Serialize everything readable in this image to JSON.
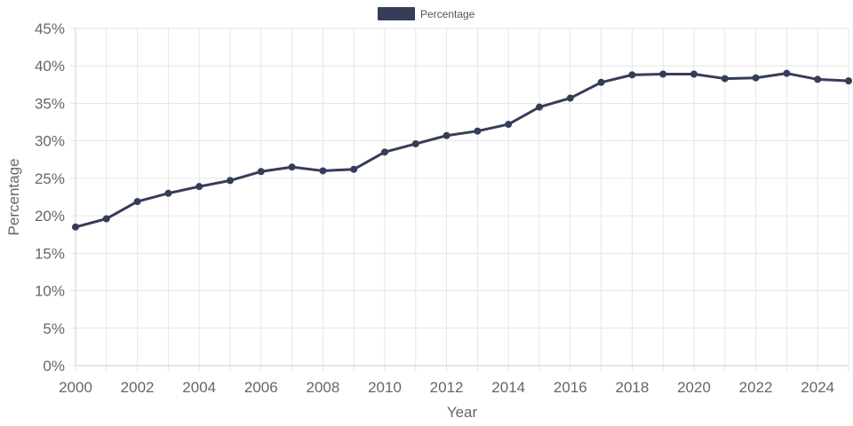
{
  "chart_data": {
    "type": "line",
    "xlabel": "Year",
    "ylabel": "Percentage",
    "xlim": [
      2000,
      2025
    ],
    "ylim": [
      0,
      45
    ],
    "x_ticks": [
      "2000",
      "2002",
      "2004",
      "2006",
      "2008",
      "2010",
      "2012",
      "2014",
      "2016",
      "2018",
      "2020",
      "2022",
      "2024"
    ],
    "y_ticks": [
      "0%",
      "5%",
      "10%",
      "15%",
      "20%",
      "25%",
      "30%",
      "35%",
      "40%",
      "45%"
    ],
    "grid": true,
    "legend_position": "top-center",
    "series": [
      {
        "name": "Percentage",
        "color": "#363d58",
        "x": [
          2000,
          2001,
          2002,
          2003,
          2004,
          2005,
          2006,
          2007,
          2008,
          2009,
          2010,
          2011,
          2012,
          2013,
          2014,
          2015,
          2016,
          2017,
          2018,
          2019,
          2020,
          2021,
          2022,
          2023,
          2024,
          2025
        ],
        "values": [
          18.5,
          19.6,
          21.9,
          23.0,
          23.9,
          24.7,
          25.9,
          26.5,
          26.0,
          26.2,
          28.5,
          29.6,
          30.7,
          31.3,
          32.2,
          34.5,
          35.7,
          37.8,
          38.8,
          38.9,
          38.9,
          38.3,
          38.4,
          39.0,
          38.2,
          38.0
        ]
      }
    ]
  }
}
